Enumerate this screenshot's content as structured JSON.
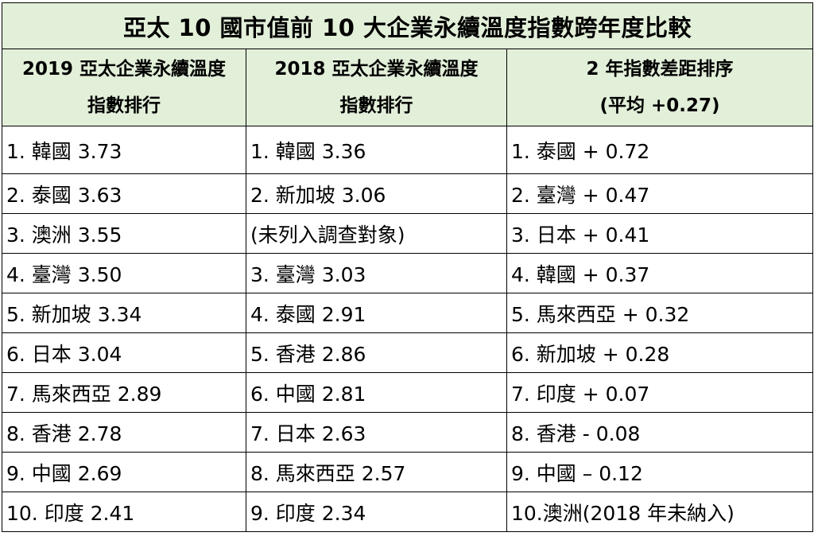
{
  "title": "亞太 10 國市值前 10 大企業永續溫度指數跨年度比較",
  "headers": [
    {
      "line1": "2019 亞太企業永續溫度",
      "line2": "指數排行"
    },
    {
      "line1": "2018 亞太企業永續溫度",
      "line2": "指數排行"
    },
    {
      "line1": "2 年指數差距排序",
      "line2": "(平均  +0.27)"
    }
  ],
  "rows": [
    [
      "1.  韓國 3.73",
      "1.  韓國 3.36",
      "1.  泰國  + 0.72"
    ],
    [
      "2.  泰國 3.63",
      "2.  新加坡 3.06",
      "2.  臺灣  + 0.47"
    ],
    [
      "3.  澳洲 3.55",
      "(未列入調查對象)",
      "3.  日本  + 0.41"
    ],
    [
      "4.  臺灣 3.50",
      "3.  臺灣 3.03",
      "4.  韓國  + 0.37"
    ],
    [
      "5.  新加坡 3.34",
      "4.  泰國 2.91",
      "5.  馬來西亞  + 0.32"
    ],
    [
      "6.  日本 3.04",
      "5.  香港 2.86",
      "6.  新加坡  + 0.28"
    ],
    [
      "7.  馬來西亞 2.89",
      "6.  中國 2.81",
      "7.  印度  + 0.07"
    ],
    [
      "8.  香港 2.78",
      "7.  日本 2.63",
      "8.  香港  - 0.08"
    ],
    [
      "9.  中國 2.69",
      "8.  馬來西亞 2.57",
      "9.  中國  – 0.12"
    ],
    [
      "10.  印度 2.41",
      "9.  印度 2.34",
      "10.澳洲(2018 年未納入)"
    ]
  ],
  "colors": {
    "header_background": "#e2efd9",
    "border": "#000000",
    "text": "#000000"
  }
}
